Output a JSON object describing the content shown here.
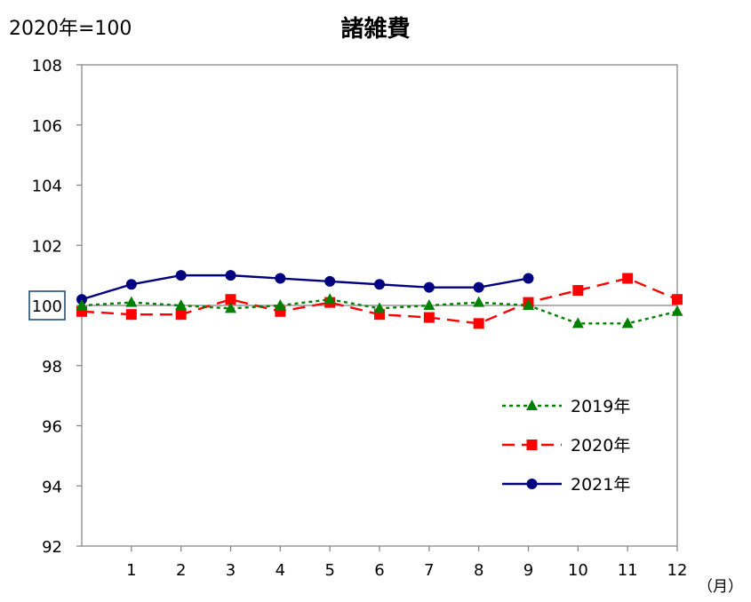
{
  "header": {
    "base_label": "2020年=100",
    "title": "諸雑費"
  },
  "chart_data": {
    "type": "line",
    "title": "諸雑費",
    "xlabel": "（月）",
    "ylabel": "",
    "x": [
      0,
      1,
      2,
      3,
      4,
      5,
      6,
      7,
      8,
      9,
      10,
      11,
      12
    ],
    "x_tick_labels": [
      "1",
      "2",
      "3",
      "4",
      "5",
      "6",
      "7",
      "8",
      "9",
      "10",
      "11",
      "12"
    ],
    "ylim": [
      92,
      108
    ],
    "y_ticks": [
      92,
      94,
      96,
      98,
      100,
      102,
      104,
      106,
      108
    ],
    "y_tick_labels": [
      "92",
      "94",
      "96",
      "98",
      "100",
      "102",
      "104",
      "106",
      "108"
    ],
    "highlighted_tick": "100",
    "reference_line": 100,
    "grid": false,
    "legend_position": "bottom-right",
    "series": [
      {
        "name": "2019年",
        "style": "dotted",
        "marker": "triangle",
        "color": "#008000",
        "values": [
          100.0,
          100.1,
          100.0,
          99.9,
          100.0,
          100.2,
          99.9,
          100.0,
          100.1,
          100.0,
          99.4,
          99.4,
          99.8
        ]
      },
      {
        "name": "2020年",
        "style": "dashed",
        "marker": "square",
        "color": "#ff0000",
        "values": [
          99.8,
          99.7,
          99.7,
          100.2,
          99.8,
          100.1,
          99.7,
          99.6,
          99.4,
          100.1,
          100.5,
          100.9,
          100.2
        ]
      },
      {
        "name": "2021年",
        "style": "solid",
        "marker": "circle",
        "color": "#000080",
        "values": [
          100.2,
          100.7,
          101.0,
          101.0,
          100.9,
          100.8,
          100.7,
          100.6,
          100.6,
          100.9,
          null,
          null,
          null
        ]
      }
    ]
  }
}
